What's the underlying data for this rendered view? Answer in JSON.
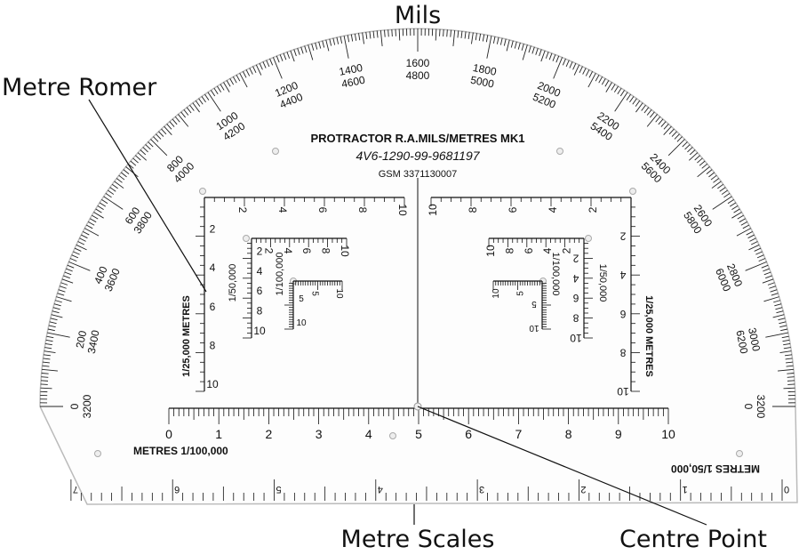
{
  "callouts": {
    "mils": "Mils",
    "metre_romer": "Metre Romer",
    "metre_scales": "Metre Scales",
    "centre_point": "Centre Point"
  },
  "protractor": {
    "title": "PROTRACTOR R.A.MILS/METRES MK1",
    "part_number": "4V6-1290-99-9681197",
    "gsm": "GSM 3371130007",
    "mils_labels": [
      {
        "outer": "0",
        "inner": "3200"
      },
      {
        "outer": "200",
        "inner": "3400"
      },
      {
        "outer": "400",
        "inner": "3600"
      },
      {
        "outer": "600",
        "inner": "3800"
      },
      {
        "outer": "800",
        "inner": "4000"
      },
      {
        "outer": "1000",
        "inner": "4200"
      },
      {
        "outer": "1200",
        "inner": "4400"
      },
      {
        "outer": "1400",
        "inner": "4600"
      },
      {
        "outer": "1600",
        "inner": "4800"
      },
      {
        "outer": "1800",
        "inner": "5000"
      },
      {
        "outer": "2000",
        "inner": "5200"
      },
      {
        "outer": "2200",
        "inner": "5400"
      },
      {
        "outer": "2400",
        "inner": "5600"
      },
      {
        "outer": "2600",
        "inner": "5800"
      },
      {
        "outer": "2800",
        "inner": "6000"
      },
      {
        "outer": "3000",
        "inner": "6200"
      },
      {
        "outer": "3200",
        "inner": "0"
      }
    ],
    "romers": [
      {
        "label": "1/25,000 METRES",
        "labels": [
          "2",
          "4",
          "6",
          "8",
          "10"
        ]
      },
      {
        "label": "1/50,000",
        "labels": [
          "2",
          "4",
          "6",
          "8",
          "10"
        ]
      },
      {
        "label": "1/100,000",
        "labels": [
          "5",
          "10"
        ]
      }
    ],
    "scale_100k": {
      "label": "METRES 1/100,000",
      "labels": [
        "0",
        "1",
        "2",
        "3",
        "4",
        "5",
        "6",
        "7",
        "8",
        "9",
        "10"
      ]
    },
    "scale_50k": {
      "label": "METRES 1/50,000",
      "labels": [
        "0",
        "1",
        "2",
        "3",
        "4",
        "5",
        "6",
        "7"
      ]
    }
  }
}
